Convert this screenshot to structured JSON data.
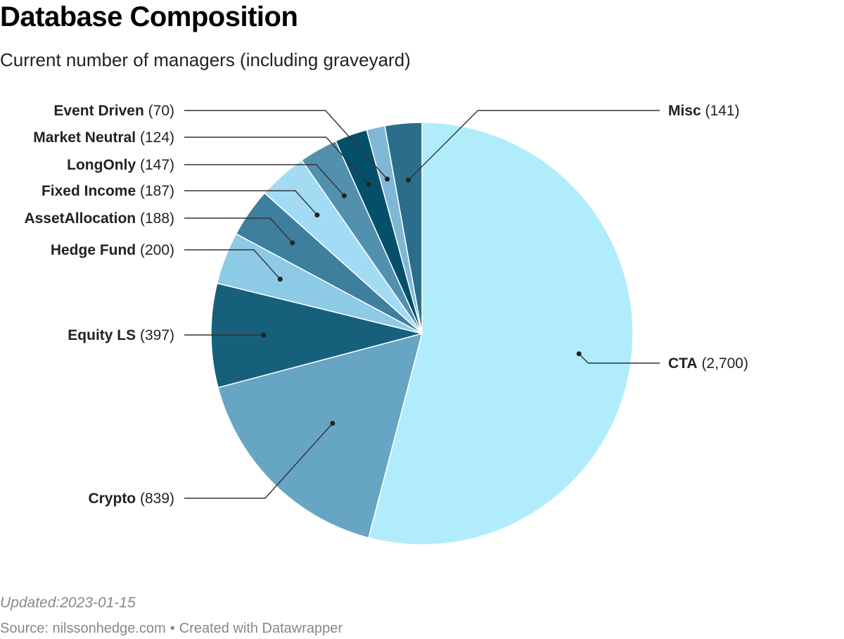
{
  "header": {
    "title": "Database Composition",
    "subtitle": "Current number of managers (including graveyard)"
  },
  "footer": {
    "updated": "Updated:2023-01-15",
    "source": "Source: nilssonhedge.com",
    "separator": "•",
    "credit": "Created with Datawrapper"
  },
  "chart_data": {
    "type": "pie",
    "title": "Database Composition",
    "subtitle": "Current number of managers (including graveyard)",
    "slices": [
      {
        "name": "CTA",
        "value": 2700,
        "display": "(2,700)",
        "color": "#b1ecfb"
      },
      {
        "name": "Crypto",
        "value": 839,
        "display": "(839)",
        "color": "#66a5c3"
      },
      {
        "name": "Equity LS",
        "value": 397,
        "display": "(397)",
        "color": "#17607c"
      },
      {
        "name": "Hedge Fund",
        "value": 200,
        "display": "(200)",
        "color": "#8ccae6"
      },
      {
        "name": "AssetAllocation",
        "value": 188,
        "display": "(188)",
        "color": "#3e7f9d"
      },
      {
        "name": "Fixed Income",
        "value": 187,
        "display": "(187)",
        "color": "#a3dbf5"
      },
      {
        "name": "LongOnly",
        "value": 147,
        "display": "(147)",
        "color": "#5191ae"
      },
      {
        "name": "Market Neutral",
        "value": 124,
        "display": "(124)",
        "color": "#04506b"
      },
      {
        "name": "Event Driven",
        "value": 70,
        "display": "(70)",
        "color": "#7fb8d6"
      },
      {
        "name": "Misc",
        "value": 141,
        "display": "(141)",
        "color": "#2a6e8b"
      }
    ]
  }
}
